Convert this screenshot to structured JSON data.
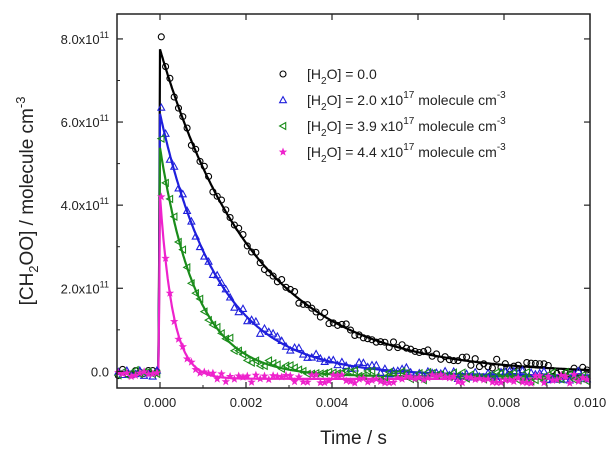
{
  "chart_data": {
    "type": "scatter",
    "xlabel": "Time / s",
    "ylabel_parts": {
      "a": "[CH",
      "sub": "2",
      "b": "OO] / molecule cm",
      "sup": "-3"
    },
    "xlim": [
      -0.001,
      0.01
    ],
    "ylim": [
      -40000000000.0,
      860000000000.0
    ],
    "x_ticks": [
      0.0,
      0.002,
      0.004,
      0.006,
      0.008,
      0.01
    ],
    "x_tick_labels": [
      "0.000",
      "0.002",
      "0.004",
      "0.006",
      "0.008",
      "0.010"
    ],
    "y_ticks": [
      0,
      200000000000.0,
      400000000000.0,
      600000000000.0,
      800000000000.0
    ],
    "y_tick_labels": [
      {
        "mant": "0.0",
        "exp": ""
      },
      {
        "mant": "2.0x10",
        "exp": "11"
      },
      {
        "mant": "4.0x10",
        "exp": "11"
      },
      {
        "mant": "6.0x10",
        "exp": "11"
      },
      {
        "mant": "8.0x10",
        "exp": "11"
      }
    ],
    "legend_position": "top-right",
    "series": [
      {
        "key": "s0",
        "marker": "circle",
        "color": "#000000",
        "legend": {
          "pre": "[H",
          "sub": "2",
          "post": "O] = 0.0",
          "sup": "",
          "tail": ""
        },
        "noise": 8000000000.0,
        "fit": {
          "peak": 780000000000.0,
          "decay": 0.0022,
          "baseline": -5000000000.0
        },
        "data_peak": 805000000000.0,
        "offset": -5000000000.0
      },
      {
        "key": "s1",
        "marker": "triangle-up",
        "color": "#1f1fdc",
        "legend": {
          "pre": "[H",
          "sub": "2",
          "post": "O] = 2.0 x10",
          "sup": "17",
          "tail": " molecule cm",
          "sup2": "-3"
        },
        "noise": 8000000000.0,
        "fit": {
          "peak": 630000000000.0,
          "decay": 0.00135,
          "baseline": -10000000000.0
        },
        "data_peak": 635000000000.0,
        "offset": -10000000000.0
      },
      {
        "key": "s2",
        "marker": "triangle-left",
        "color": "#1a8c1a",
        "legend": {
          "pre": "[H",
          "sub": "2",
          "post": "O] = 3.9 x10",
          "sup": "17",
          "tail": " molecule cm",
          "sup2": "-3"
        },
        "noise": 8000000000.0,
        "fit": {
          "peak": 550000000000.0,
          "decay": 0.00085,
          "baseline": -12000000000.0
        },
        "data_peak": 560000000000.0,
        "offset": -12000000000.0
      },
      {
        "key": "s3",
        "marker": "star",
        "color": "#ee22cc",
        "legend": {
          "pre": "[H",
          "sub": "2",
          "post": "O] = 4.4 x10",
          "sup": "17",
          "tail": " molecule cm",
          "sup2": "-3"
        },
        "noise": 7000000000.0,
        "fit": {
          "peak": 440000000000.0,
          "decay": 0.0003,
          "baseline": -18000000000.0
        },
        "data_peak": 420000000000.0,
        "offset": -18000000000.0
      }
    ]
  }
}
